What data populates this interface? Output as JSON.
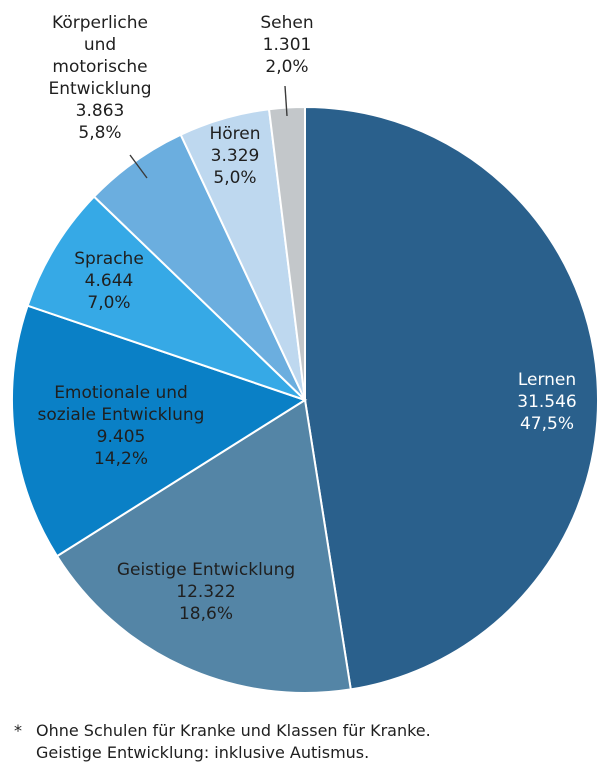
{
  "chart_data": {
    "type": "pie",
    "slices": [
      {
        "id": "lernen",
        "label_lines": [
          "Lernen"
        ],
        "value": 31546,
        "value_text": "31.546",
        "percent": 47.5,
        "percent_text": "47,5%",
        "color": "#2A608C",
        "label_color": "#ffffff"
      },
      {
        "id": "geistige-entwicklung",
        "label_lines": [
          "Geistige Entwicklung"
        ],
        "value": 12322,
        "value_text": "12.322",
        "percent": 18.6,
        "percent_text": "18,6%",
        "color": "#5485A6",
        "label_color": "#1f1f1f"
      },
      {
        "id": "emotionale-soziale-entwicklung",
        "label_lines": [
          "Emotionale und",
          "soziale Entwicklung"
        ],
        "value": 9405,
        "value_text": "9.405",
        "percent": 14.2,
        "percent_text": "14,2%",
        "color": "#0A80C6",
        "label_color": "#1f1f1f"
      },
      {
        "id": "sprache",
        "label_lines": [
          "Sprache"
        ],
        "value": 4644,
        "value_text": "4.644",
        "percent": 7.0,
        "percent_text": "7,0%",
        "color": "#36A9E6",
        "label_color": "#1f1f1f"
      },
      {
        "id": "koerperliche-motorische-entwicklung",
        "label_lines": [
          "Körperliche",
          "und",
          "motorische",
          "Entwicklung"
        ],
        "value": 3863,
        "value_text": "3.863",
        "percent": 5.8,
        "percent_text": "5,8%",
        "color": "#6BAEDF",
        "label_color": "#1f1f1f"
      },
      {
        "id": "hoeren",
        "label_lines": [
          "Hören"
        ],
        "value": 3329,
        "value_text": "3.329",
        "percent": 5.0,
        "percent_text": "5,0%",
        "color": "#BED8EF",
        "label_color": "#1f1f1f"
      },
      {
        "id": "sehen",
        "label_lines": [
          "Sehen"
        ],
        "value": 1301,
        "value_text": "1.301",
        "percent": 2.0,
        "percent_text": "2,0%",
        "color": "#C3C7CA",
        "label_color": "#1f1f1f"
      }
    ]
  },
  "footnote": {
    "mark": "*",
    "line1": "Ohne Schulen für Kranke und Klassen für Kranke.",
    "line2": "Geistige Entwicklung: inklusive Autismus."
  }
}
